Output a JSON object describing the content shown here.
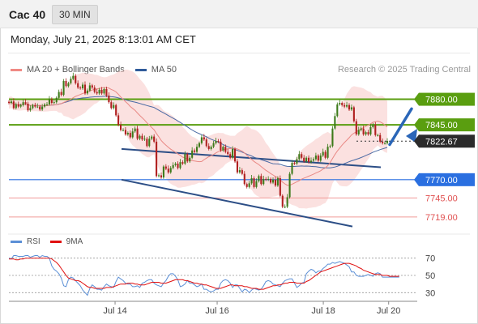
{
  "header": {
    "title": "Cac 40",
    "timeframe": "30 MIN",
    "timestamp": "Monday, July 21, 2025 8:13:01 AM CET"
  },
  "legend": {
    "items": [
      {
        "label": "MA 20 + Bollinger Bands",
        "color": "#f08a84"
      },
      {
        "label": "MA 50",
        "color": "#2f5b9a"
      }
    ],
    "credit": "Research © 2025 Trading Central"
  },
  "rsi_legend": {
    "items": [
      {
        "label": "RSI",
        "color": "#5b8fd6"
      },
      {
        "label": "9MA",
        "color": "#e01010"
      }
    ]
  },
  "chart_data": [
    {
      "type": "candlestick",
      "ylim": [
        7700,
        7905
      ],
      "x_ticks": [
        {
          "label": "Jul 14",
          "pos": 0.26
        },
        {
          "label": "Jul 16",
          "pos": 0.51
        },
        {
          "label": "Jul 18",
          "pos": 0.77
        },
        {
          "label": "Jul 20",
          "pos": 0.93
        }
      ],
      "price_levels": [
        {
          "label": "7880.00",
          "value": 7880,
          "color": "#5a9e10",
          "style": "box"
        },
        {
          "label": "7845.00",
          "value": 7845,
          "color": "#5a9e10",
          "style": "box"
        },
        {
          "label": "7770.00",
          "value": 7770,
          "color": "#2a6fe0",
          "style": "box"
        },
        {
          "label": "7745.00",
          "value": 7745,
          "color": "#e05050",
          "style": "text"
        },
        {
          "label": "7719.00",
          "value": 7719,
          "color": "#e05050",
          "style": "text"
        }
      ],
      "current_price": {
        "label": "7822.67",
        "value": 7822.67
      },
      "close": [
        7875,
        7877,
        7868,
        7873,
        7870,
        7872,
        7876,
        7874,
        7865,
        7868,
        7872,
        7870,
        7870,
        7866,
        7870,
        7873,
        7873,
        7880,
        7875,
        7876,
        7882,
        7890,
        7886,
        7905,
        7898,
        7902,
        7908,
        7912,
        7902,
        7896,
        7895,
        7900,
        7888,
        7892,
        7899,
        7896,
        7890,
        7888,
        7893,
        7888,
        7894,
        7885,
        7876,
        7868,
        7872,
        7858,
        7845,
        7838,
        7838,
        7832,
        7834,
        7828,
        7836,
        7840,
        7826,
        7830,
        7825,
        7826,
        7816,
        7826,
        7829,
        7822,
        7775,
        7776,
        7773,
        7788,
        7785,
        7780,
        7786,
        7790,
        7792,
        7786,
        7794,
        7792,
        7805,
        7795,
        7800,
        7810,
        7808,
        7815,
        7820,
        7828,
        7825,
        7816,
        7812,
        7815,
        7820,
        7823,
        7822,
        7810,
        7815,
        7808,
        7805,
        7800,
        7812,
        7795,
        7780,
        7783,
        7778,
        7764,
        7760,
        7765,
        7772,
        7760,
        7768,
        7775,
        7764,
        7771,
        7770,
        7771,
        7766,
        7770,
        7762,
        7772,
        7748,
        7733,
        7733,
        7746,
        7778,
        7793,
        7792,
        7798,
        7805,
        7800,
        7795,
        7800,
        7794,
        7796,
        7798,
        7803,
        7796,
        7803,
        7808,
        7800,
        7815,
        7816,
        7840,
        7857,
        7873,
        7875,
        7872,
        7870,
        7872,
        7866,
        7869,
        7850,
        7832,
        7838,
        7840,
        7832,
        7835,
        7832,
        7842,
        7845,
        7831,
        7831,
        7822,
        7820,
        7820,
        7823
      ],
      "rsi": {
        "ylim": [
          20,
          80
        ],
        "levels": [
          {
            "label": "70",
            "value": 70
          },
          {
            "label": "50",
            "value": 50
          },
          {
            "label": "30",
            "value": 30
          }
        ],
        "series": [
          {
            "name": "RSI",
            "color": "#5b8fd6",
            "values": [
              70,
              69,
              73,
              73,
              72,
              72,
              72,
              73,
              73,
              71,
              72,
              73,
              73,
              71,
              73,
              72,
              72,
              70,
              61,
              57,
              55,
              52,
              47,
              38,
              37,
              45,
              48,
              47,
              44,
              41,
              38,
              33,
              30,
              27,
              35,
              39,
              37,
              34,
              34,
              33,
              37,
              40,
              38,
              37,
              36,
              43,
              48,
              46,
              44,
              41,
              40,
              40,
              37,
              37,
              38,
              36,
              41,
              42,
              44,
              45,
              45,
              41,
              39,
              38,
              37,
              41,
              44,
              49,
              52,
              52,
              49,
              45,
              37,
              38,
              40,
              44,
              41,
              41,
              39,
              37,
              38,
              40,
              34,
              34,
              32,
              31,
              32,
              34,
              34,
              41,
              44,
              45,
              44,
              41,
              36,
              39,
              39,
              35,
              31,
              34,
              33,
              30,
              33,
              35,
              34,
              33,
              34,
              38,
              43,
              44,
              43,
              40,
              39,
              38,
              37,
              41,
              44,
              45,
              46,
              46,
              41,
              36,
              38,
              41,
              42,
              52,
              55,
              57,
              56,
              53,
              55,
              55,
              58,
              60,
              63,
              63,
              65,
              64,
              65,
              66,
              65,
              64,
              62,
              60,
              54,
              54,
              50,
              49,
              49,
              49,
              50,
              51,
              50,
              49,
              52,
              53,
              52,
              48,
              48,
              48,
              48,
              48,
              48,
              48,
              48
            ]
          },
          {
            "name": "9MA",
            "color": "#e01010",
            "values": [
              69,
              69,
              69,
              68,
              68,
              69,
              69,
              70,
              70,
              70,
              70,
              70,
              70,
              70,
              70,
              70,
              70,
              70,
              69,
              67,
              65,
              62,
              58,
              54,
              50,
              47,
              46,
              45,
              44,
              44,
              43,
              41,
              39,
              37,
              36,
              36,
              35,
              35,
              35,
              35,
              35,
              36,
              36,
              36,
              37,
              38,
              39,
              40,
              40,
              40,
              41,
              41,
              41,
              40,
              40,
              39,
              39,
              39,
              40,
              41,
              42,
              42,
              42,
              42,
              41,
              41,
              41,
              42,
              43,
              44,
              45,
              45,
              45,
              45,
              44,
              44,
              43,
              42,
              41,
              41,
              40,
              40,
              39,
              39,
              38,
              37,
              36,
              35,
              35,
              35,
              36,
              37,
              38,
              39,
              39,
              38,
              38,
              38,
              38,
              37,
              37,
              36,
              35,
              35,
              35,
              34,
              34,
              34,
              35,
              36,
              37,
              38,
              38,
              39,
              39,
              40,
              41,
              41,
              42,
              42,
              42,
              41,
              41,
              41,
              41,
              43,
              44,
              46,
              48,
              50,
              52,
              54,
              55,
              56,
              57,
              58,
              59,
              60,
              61,
              62,
              63,
              64,
              64,
              64,
              63,
              62,
              61,
              59,
              58,
              56,
              55,
              54,
              53,
              52,
              51,
              51,
              51,
              50,
              50,
              50,
              49,
              49,
              49,
              49,
              49
            ]
          }
        ]
      }
    }
  ]
}
